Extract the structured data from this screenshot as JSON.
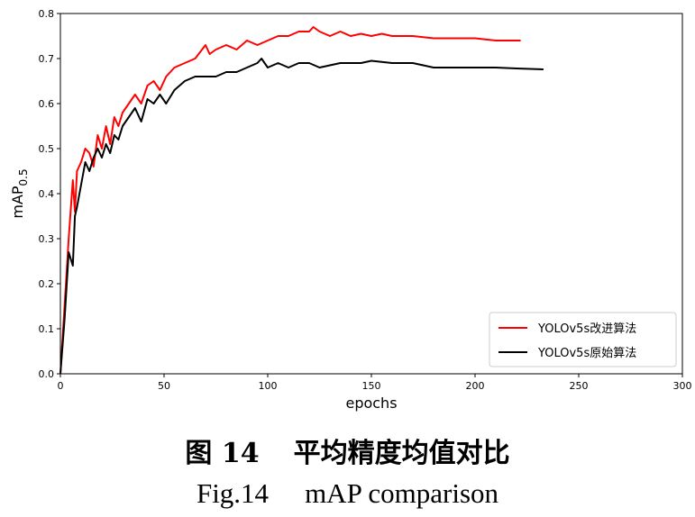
{
  "chart_data": {
    "type": "line",
    "xlabel": "epochs",
    "ylabel": "mAP",
    "ylabel_sub": "0.5",
    "xlim": [
      0,
      300
    ],
    "ylim": [
      0,
      0.8
    ],
    "xticks": [
      0,
      50,
      100,
      150,
      200,
      250,
      300
    ],
    "yticks": [
      0.0,
      0.1,
      0.2,
      0.3,
      0.4,
      0.5,
      0.6,
      0.7,
      0.8
    ],
    "xtick_labels": [
      "0",
      "50",
      "100",
      "150",
      "200",
      "250",
      "300"
    ],
    "ytick_labels": [
      "0.0",
      "0.1",
      "0.2",
      "0.3",
      "0.4",
      "0.5",
      "0.6",
      "0.7",
      "0.8"
    ],
    "grid": false,
    "legend_position": "lower-right",
    "series": [
      {
        "name": "YOLOv5s改进算法",
        "color": "#ff0000",
        "x": [
          0,
          2,
          4,
          6,
          7,
          8,
          10,
          12,
          14,
          16,
          18,
          20,
          22,
          24,
          26,
          28,
          30,
          33,
          36,
          39,
          42,
          45,
          48,
          51,
          55,
          60,
          65,
          70,
          72,
          75,
          80,
          85,
          90,
          95,
          100,
          105,
          110,
          115,
          120,
          122,
          125,
          130,
          135,
          140,
          145,
          150,
          155,
          160,
          170,
          180,
          190,
          200,
          210,
          222
        ],
        "y": [
          0.0,
          0.15,
          0.3,
          0.43,
          0.36,
          0.45,
          0.47,
          0.5,
          0.49,
          0.46,
          0.53,
          0.5,
          0.55,
          0.51,
          0.57,
          0.55,
          0.58,
          0.6,
          0.62,
          0.6,
          0.64,
          0.65,
          0.63,
          0.66,
          0.68,
          0.69,
          0.7,
          0.73,
          0.71,
          0.72,
          0.73,
          0.72,
          0.74,
          0.73,
          0.74,
          0.75,
          0.75,
          0.76,
          0.76,
          0.77,
          0.76,
          0.75,
          0.76,
          0.75,
          0.755,
          0.75,
          0.755,
          0.75,
          0.75,
          0.745,
          0.745,
          0.745,
          0.74,
          0.74
        ]
      },
      {
        "name": "YOLOv5s原始算法",
        "color": "#000000",
        "x": [
          0,
          2,
          4,
          6,
          7,
          8,
          10,
          12,
          14,
          16,
          18,
          20,
          22,
          24,
          26,
          28,
          30,
          33,
          36,
          39,
          42,
          45,
          48,
          51,
          55,
          60,
          65,
          70,
          75,
          80,
          85,
          90,
          95,
          97,
          100,
          105,
          110,
          115,
          120,
          125,
          130,
          135,
          140,
          145,
          150,
          160,
          170,
          180,
          190,
          200,
          210,
          220,
          233
        ],
        "y": [
          0.0,
          0.12,
          0.27,
          0.24,
          0.35,
          0.37,
          0.42,
          0.47,
          0.45,
          0.48,
          0.5,
          0.48,
          0.51,
          0.49,
          0.53,
          0.52,
          0.55,
          0.57,
          0.59,
          0.56,
          0.61,
          0.6,
          0.62,
          0.6,
          0.63,
          0.65,
          0.66,
          0.66,
          0.66,
          0.67,
          0.67,
          0.68,
          0.69,
          0.7,
          0.68,
          0.69,
          0.68,
          0.69,
          0.69,
          0.68,
          0.685,
          0.69,
          0.69,
          0.69,
          0.695,
          0.69,
          0.69,
          0.68,
          0.68,
          0.68,
          0.68,
          0.678,
          0.676
        ]
      }
    ]
  },
  "caption": {
    "cn_number": "图 14",
    "cn_title": "平均精度均值对比",
    "en_number": "Fig.14",
    "en_title": "mAP comparison"
  }
}
